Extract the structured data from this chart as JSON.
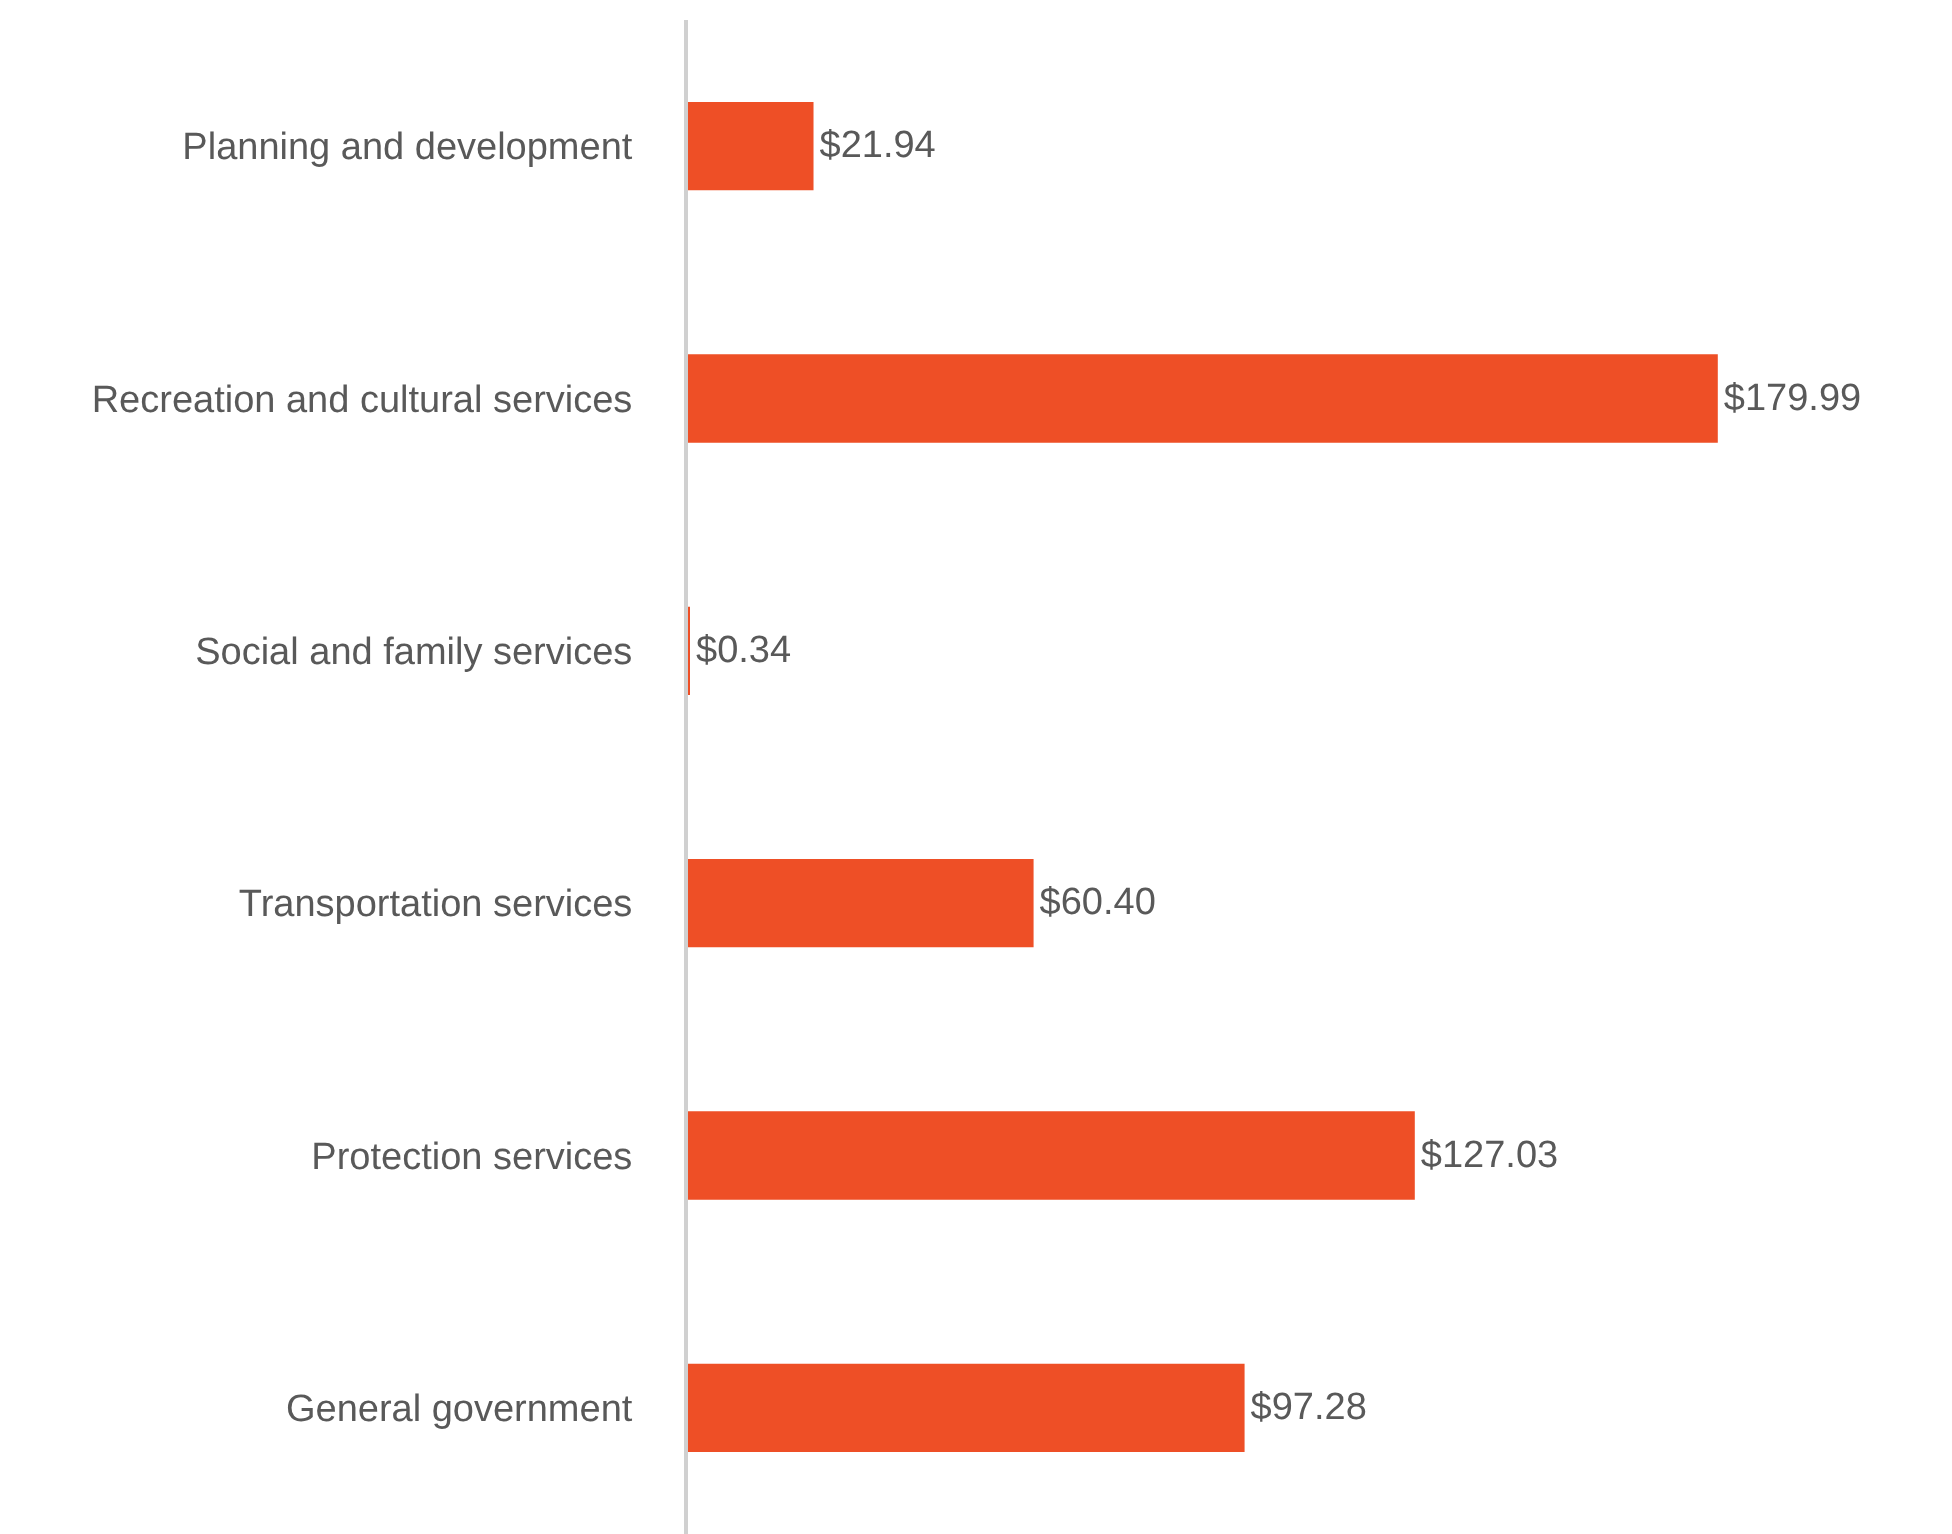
{
  "chart_data": {
    "type": "bar",
    "orientation": "horizontal",
    "categories": [
      "Planning and development",
      "Recreation and cultural services",
      "Social and family services",
      "Transportation services",
      "Protection services",
      "General government"
    ],
    "values": [
      21.94,
      179.99,
      0.34,
      60.4,
      127.03,
      97.28
    ],
    "value_labels": [
      "$21.94",
      "$179.99",
      "$0.34",
      "$60.40",
      "$127.03",
      "$97.28"
    ],
    "color": "#ee4f26",
    "tick_labels": "y"
  }
}
